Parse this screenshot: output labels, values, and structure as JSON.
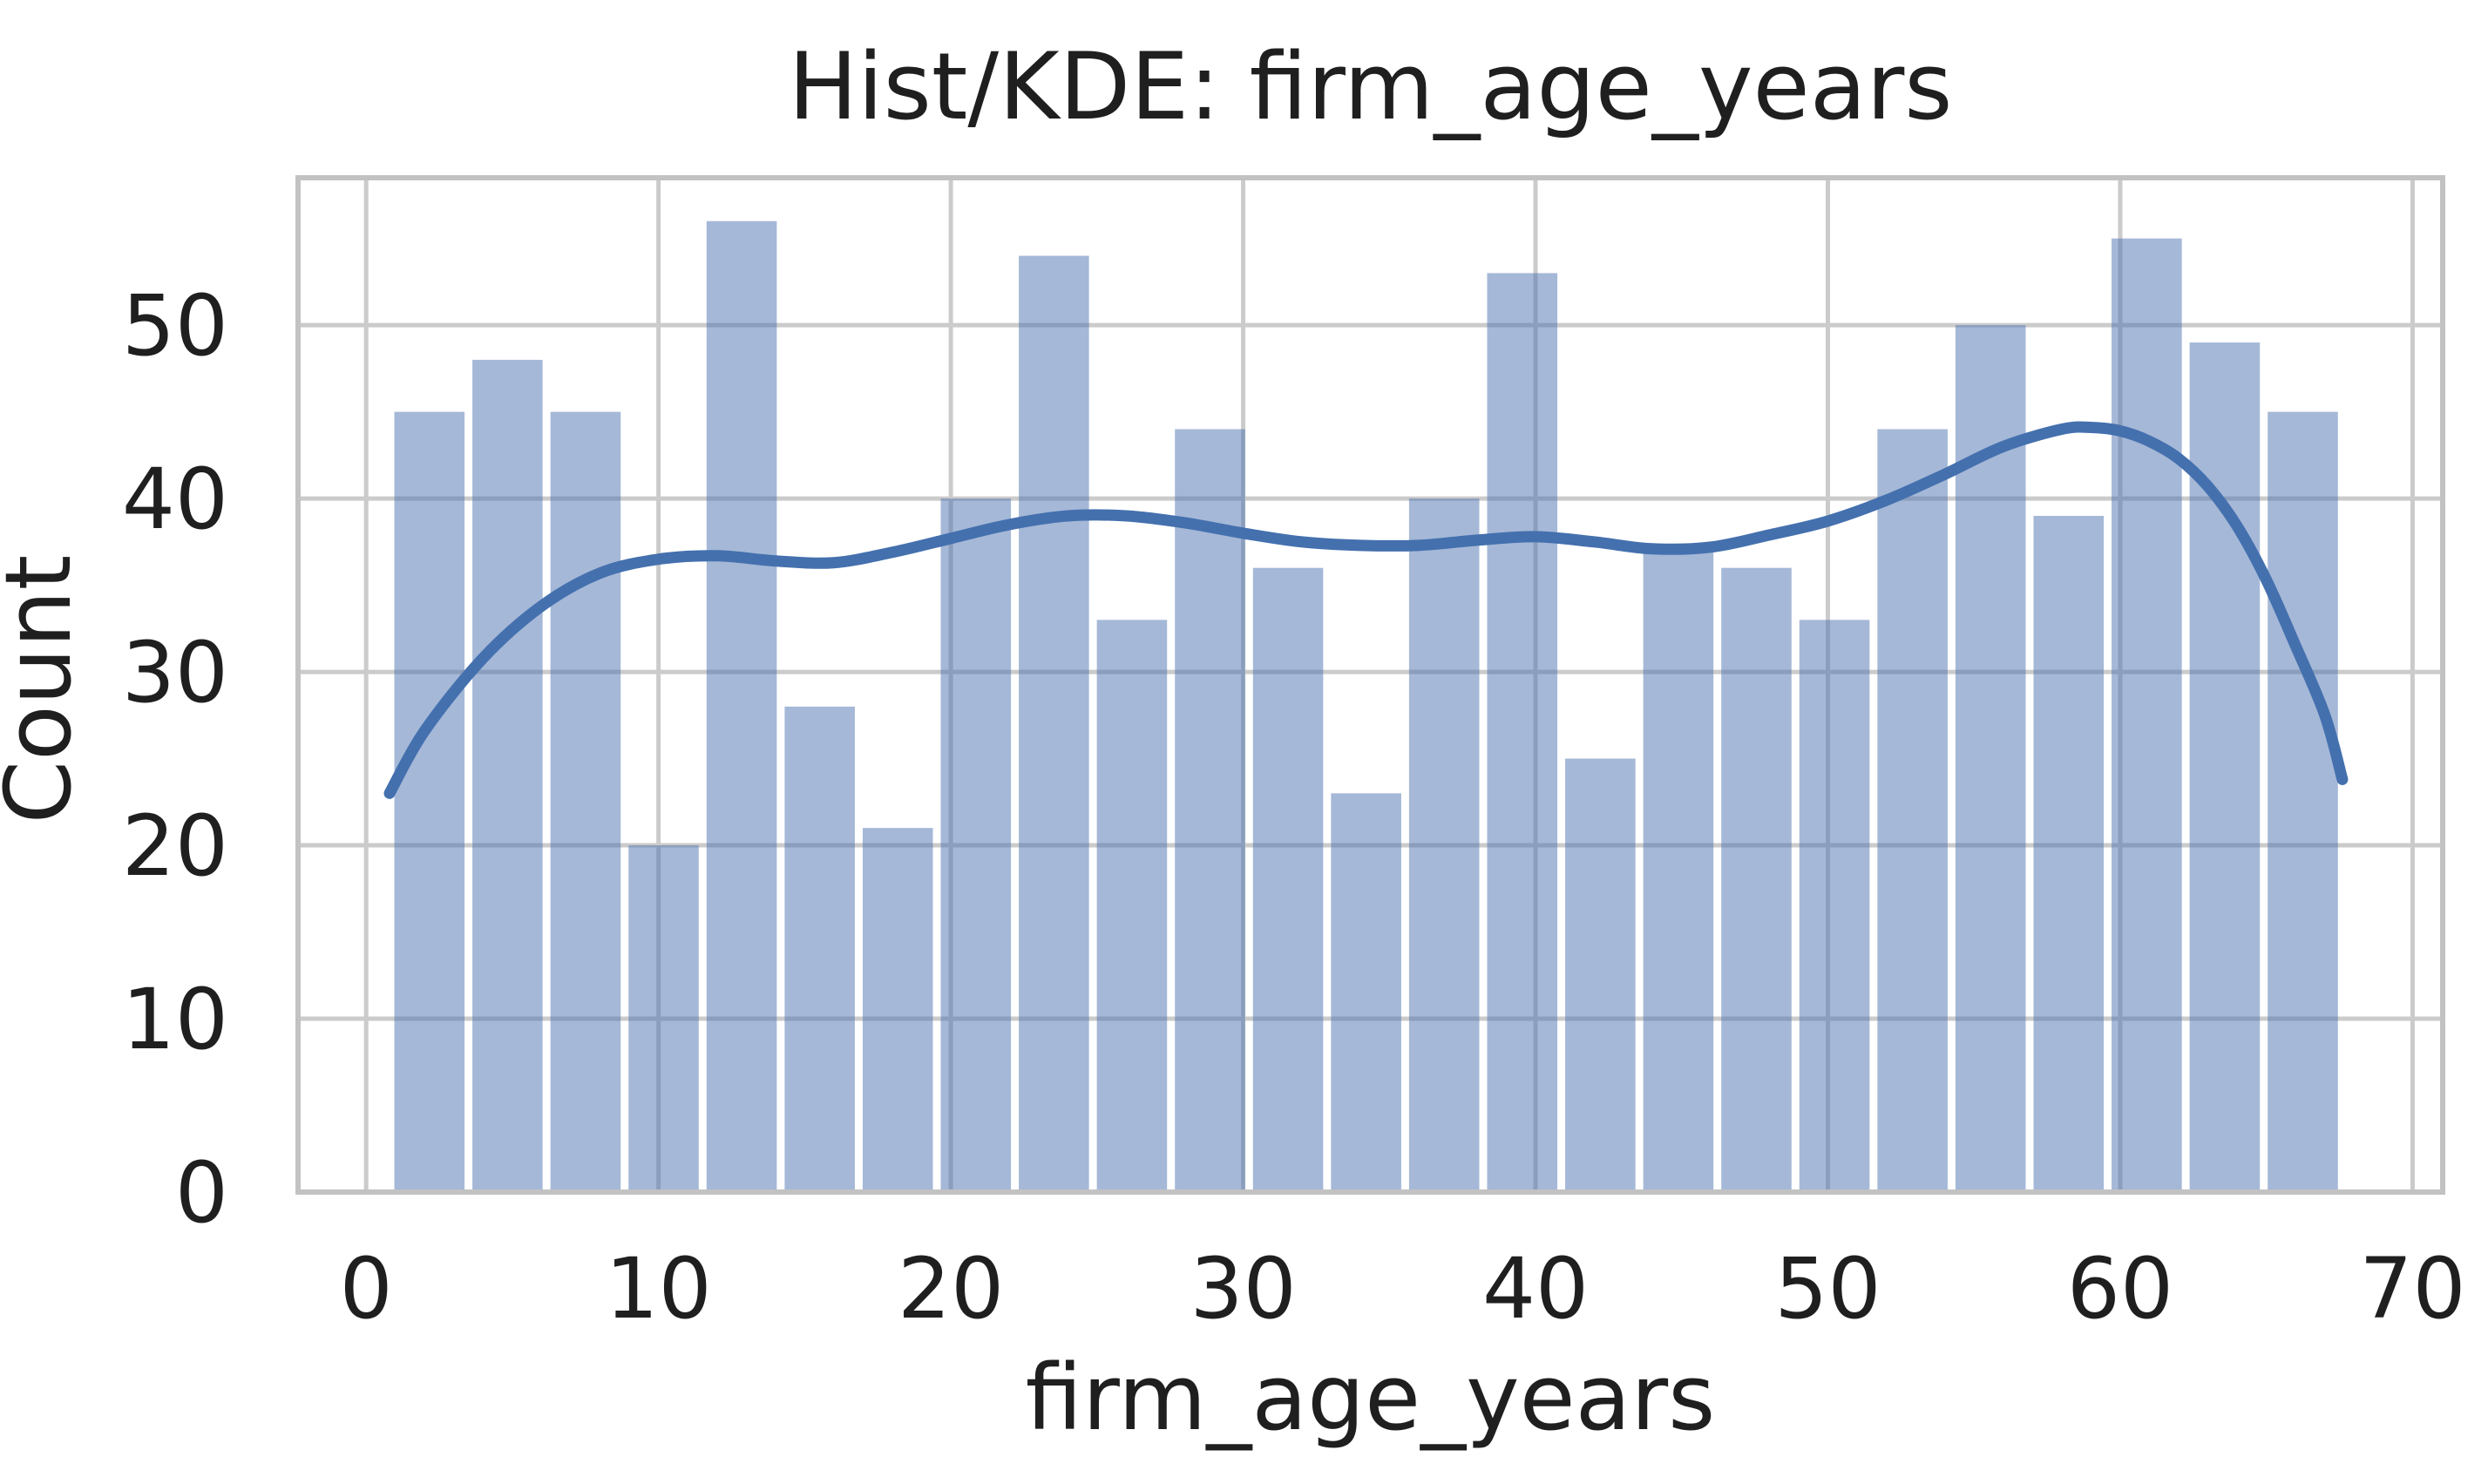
{
  "figure": {
    "title": "Hist/KDE: firm_age_years",
    "xlabel": "firm_age_years",
    "ylabel": "Count"
  },
  "chart_data": {
    "type": "bar",
    "subtype": "histogram_with_kde",
    "variable": "firm_age_years",
    "title": "Hist/KDE: firm_age_years",
    "xlabel": "firm_age_years",
    "ylabel": "Count",
    "n_bins": 25,
    "bin_start": 0.83,
    "bin_width": 2.67,
    "bin_counts": [
      45,
      48,
      45,
      20,
      56,
      28,
      21,
      40,
      54,
      33,
      44,
      36,
      23,
      40,
      53,
      25,
      37,
      36,
      33,
      44,
      50,
      39,
      55,
      49,
      45
    ],
    "kde_points": [
      [
        0.8,
        23.0
      ],
      [
        2,
        26.6
      ],
      [
        4,
        30.8
      ],
      [
        6,
        33.8
      ],
      [
        8,
        35.7
      ],
      [
        10,
        36.5
      ],
      [
        12,
        36.7
      ],
      [
        14,
        36.4
      ],
      [
        16,
        36.3
      ],
      [
        18,
        36.9
      ],
      [
        20,
        37.7
      ],
      [
        22,
        38.5
      ],
      [
        24,
        39.0
      ],
      [
        26,
        39.0
      ],
      [
        28,
        38.6
      ],
      [
        30,
        38.0
      ],
      [
        32,
        37.5
      ],
      [
        34,
        37.3
      ],
      [
        36,
        37.3
      ],
      [
        38,
        37.6
      ],
      [
        40,
        37.8
      ],
      [
        42,
        37.5
      ],
      [
        44,
        37.1
      ],
      [
        46,
        37.2
      ],
      [
        48,
        37.9
      ],
      [
        50,
        38.7
      ],
      [
        52,
        39.9
      ],
      [
        54,
        41.4
      ],
      [
        56,
        43.0
      ],
      [
        58,
        44.0
      ],
      [
        59,
        44.1
      ],
      [
        60,
        43.9
      ],
      [
        61,
        43.3
      ],
      [
        62,
        42.3
      ],
      [
        63,
        40.7
      ],
      [
        64,
        38.4
      ],
      [
        65,
        35.3
      ],
      [
        66,
        31.5
      ],
      [
        67,
        27.5
      ],
      [
        67.6,
        23.8
      ]
    ],
    "x_ticks": [
      0,
      10,
      20,
      30,
      40,
      50,
      60,
      70
    ],
    "y_ticks": [
      0,
      10,
      20,
      30,
      40,
      50
    ],
    "xlim": [
      -2.33,
      71.03
    ],
    "ylim": [
      0,
      58.5
    ],
    "grid": true,
    "legend": false,
    "colors": {
      "bar_fill": "rgba(76,114,176,0.5)",
      "kde_line": "#4470ae",
      "grid_line": "#cbcbcb",
      "spine": "#c2c2c2",
      "text": "#1f1f1f"
    }
  }
}
